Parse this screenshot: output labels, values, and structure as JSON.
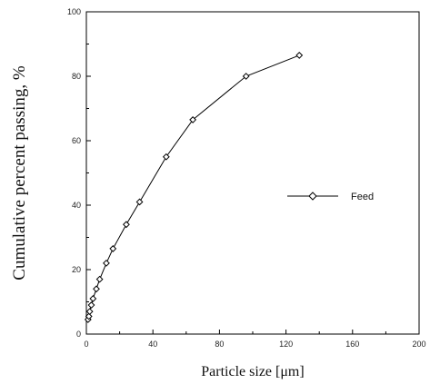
{
  "chart_data": {
    "type": "line",
    "title": "",
    "xlabel": "Particle size [μm]",
    "ylabel": "Cumulative percent passing, %",
    "xlim": [
      0,
      200
    ],
    "ylim": [
      0,
      100
    ],
    "xticks": [
      0,
      40,
      80,
      120,
      160,
      200
    ],
    "yticks": [
      0,
      20,
      40,
      60,
      80,
      100
    ],
    "grid": false,
    "legend_position": "center-right",
    "series": [
      {
        "name": "Feed",
        "marker": "diamond",
        "color": "#000000",
        "x": [
          1,
          1.5,
          2,
          3,
          4,
          6,
          8,
          12,
          16,
          24,
          32,
          48,
          64,
          96,
          128
        ],
        "y": [
          4.5,
          5.5,
          7,
          9,
          11,
          14,
          17,
          22,
          26.5,
          34,
          41,
          55,
          66.5,
          80,
          86.5
        ]
      }
    ]
  }
}
